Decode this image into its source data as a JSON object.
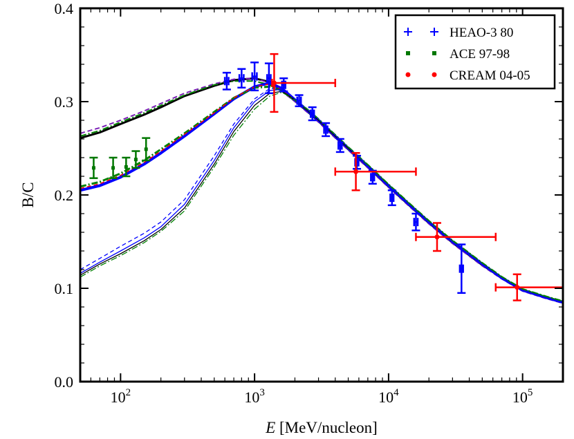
{
  "chart_data": {
    "type": "line",
    "title": "",
    "xlabel_italic": "E",
    "xlabel_rest": " [MeV/nucleon]",
    "ylabel": "B/C",
    "xscale": "log",
    "xlim": [
      50,
      200000
    ],
    "ylim": [
      0.0,
      0.4
    ],
    "x_ticks": [
      {
        "value": 100,
        "base": "10",
        "exp": "2"
      },
      {
        "value": 1000,
        "base": "10",
        "exp": "3"
      },
      {
        "value": 10000,
        "base": "10",
        "exp": "4"
      },
      {
        "value": 100000,
        "base": "10",
        "exp": "5"
      }
    ],
    "y_ticks": [
      {
        "value": 0.0,
        "label": "0.0"
      },
      {
        "value": 0.1,
        "label": "0.1"
      },
      {
        "value": 0.2,
        "label": "0.2"
      },
      {
        "value": 0.3,
        "label": "0.3"
      },
      {
        "value": 0.4,
        "label": "0.4"
      }
    ],
    "grid": false,
    "legend_position": "top-right",
    "legend": [
      {
        "label": "HEAO-3 80",
        "marker": "plus",
        "color": "#0000ff"
      },
      {
        "label": "ACE 97-98",
        "marker": "square",
        "color": "#007700"
      },
      {
        "label": "CREAM 04-05",
        "marker": "circle",
        "color": "#ff0000"
      }
    ],
    "datasets": [
      {
        "name": "HEAO-3 80",
        "color": "#0000ff",
        "points": [
          {
            "x": 620,
            "y": 0.322,
            "yerr": 0.009,
            "xerr": [
              600,
              640
            ]
          },
          {
            "x": 800,
            "y": 0.325,
            "yerr": 0.01,
            "xerr": [
              770,
              830
            ]
          },
          {
            "x": 1000,
            "y": 0.327,
            "yerr": 0.015,
            "xerr": [
              960,
              1040
            ]
          },
          {
            "x": 1280,
            "y": 0.325,
            "yerr": 0.016,
            "xerr": [
              1240,
              1320
            ]
          },
          {
            "x": 1650,
            "y": 0.318,
            "yerr": 0.007,
            "xerr": [
              1600,
              1700
            ]
          },
          {
            "x": 2150,
            "y": 0.301,
            "yerr": 0.006,
            "xerr": [
              2080,
              2220
            ]
          },
          {
            "x": 2700,
            "y": 0.287,
            "yerr": 0.007,
            "xerr": [
              2620,
              2780
            ]
          },
          {
            "x": 3400,
            "y": 0.27,
            "yerr": 0.007,
            "xerr": [
              3300,
              3500
            ]
          },
          {
            "x": 4350,
            "y": 0.253,
            "yerr": 0.007,
            "xerr": [
              4220,
              4480
            ]
          },
          {
            "x": 5800,
            "y": 0.235,
            "yerr": 0.007,
            "xerr": [
              5630,
              5970
            ]
          },
          {
            "x": 7600,
            "y": 0.219,
            "yerr": 0.007,
            "xerr": [
              7380,
              7820
            ]
          },
          {
            "x": 10600,
            "y": 0.197,
            "yerr": 0.008,
            "xerr": [
              10300,
              10900
            ]
          },
          {
            "x": 16000,
            "y": 0.171,
            "yerr": 0.009,
            "xerr": [
              15500,
              16500
            ]
          },
          {
            "x": 35000,
            "y": 0.121,
            "yerr": 0.026,
            "xerr": [
              34000,
              36000
            ]
          }
        ]
      },
      {
        "name": "ACE 97-98",
        "color": "#007700",
        "points": [
          {
            "x": 63,
            "y": 0.229,
            "yerr": 0.011
          },
          {
            "x": 88,
            "y": 0.229,
            "yerr": 0.011
          },
          {
            "x": 110,
            "y": 0.23,
            "yerr": 0.01
          },
          {
            "x": 130,
            "y": 0.238,
            "yerr": 0.009
          },
          {
            "x": 155,
            "y": 0.249,
            "yerr": 0.012
          }
        ]
      },
      {
        "name": "CREAM 04-05",
        "color": "#ff0000",
        "points": [
          {
            "x": 1400,
            "y": 0.32,
            "yerr": 0.031,
            "xerr": [
              1350,
              4000
            ]
          },
          {
            "x": 5700,
            "y": 0.225,
            "yerr": 0.02,
            "xerr": [
              4000,
              16000
            ]
          },
          {
            "x": 23000,
            "y": 0.155,
            "yerr": 0.015,
            "xerr": [
              16000,
              63000
            ]
          },
          {
            "x": 91000,
            "y": 0.101,
            "yerr": 0.014,
            "xerr": [
              63000,
              200000
            ]
          }
        ]
      }
    ],
    "model_curves": [
      {
        "name": "model-upper-solid",
        "color": "#000000",
        "dash": "",
        "width": 3,
        "x": [
          50,
          70,
          100,
          150,
          200,
          300,
          500,
          700,
          1000,
          1300,
          1600,
          2000,
          2500,
          3000,
          4000,
          5000,
          7000,
          10000,
          15000,
          20000,
          30000,
          50000,
          70000,
          100000,
          150000,
          200000
        ],
        "y": [
          0.261,
          0.267,
          0.276,
          0.286,
          0.294,
          0.306,
          0.317,
          0.323,
          0.325,
          0.321,
          0.312,
          0.301,
          0.289,
          0.279,
          0.262,
          0.249,
          0.23,
          0.209,
          0.186,
          0.17,
          0.149,
          0.125,
          0.111,
          0.098,
          0.09,
          0.085
        ]
      },
      {
        "name": "model-upper-dashed",
        "color": "#7a1fb5",
        "dash": "7 4",
        "width": 2,
        "x": [
          50,
          70,
          100,
          150,
          200,
          300,
          500,
          700,
          1000,
          1300,
          1600,
          2000,
          2500,
          3000,
          4000,
          5000,
          7000,
          10000,
          15000,
          20000,
          30000,
          50000,
          70000,
          100000,
          150000,
          200000
        ],
        "y": [
          0.266,
          0.272,
          0.28,
          0.29,
          0.298,
          0.309,
          0.319,
          0.324,
          0.325,
          0.32,
          0.311,
          0.3,
          0.288,
          0.278,
          0.261,
          0.248,
          0.229,
          0.208,
          0.185,
          0.169,
          0.148,
          0.124,
          0.11,
          0.097,
          0.089,
          0.084
        ]
      },
      {
        "name": "model-upper-dashdot",
        "color": "#008000",
        "dash": "9 3 2 3",
        "width": 2,
        "x": [
          50,
          70,
          100,
          150,
          200,
          300,
          500,
          700,
          1000,
          1300,
          1600,
          2000,
          2500,
          3000,
          4000,
          5000,
          7000,
          10000,
          15000,
          20000,
          30000,
          50000,
          70000,
          100000,
          150000,
          200000
        ],
        "y": [
          0.263,
          0.269,
          0.278,
          0.288,
          0.296,
          0.307,
          0.318,
          0.322,
          0.322,
          0.318,
          0.311,
          0.301,
          0.29,
          0.28,
          0.263,
          0.25,
          0.231,
          0.21,
          0.187,
          0.171,
          0.15,
          0.126,
          0.112,
          0.099,
          0.091,
          0.086
        ]
      },
      {
        "name": "model-middle-solid",
        "color": "#0000ff",
        "dash": "",
        "width": 4,
        "x": [
          50,
          70,
          100,
          150,
          200,
          300,
          500,
          700,
          1000,
          1300,
          1600,
          2000,
          2500,
          3000,
          4000,
          5000,
          7000,
          10000,
          15000,
          20000,
          30000,
          50000,
          70000,
          100000,
          150000,
          200000
        ],
        "y": [
          0.205,
          0.21,
          0.219,
          0.233,
          0.245,
          0.263,
          0.287,
          0.303,
          0.316,
          0.32,
          0.314,
          0.302,
          0.29,
          0.28,
          0.263,
          0.25,
          0.231,
          0.21,
          0.187,
          0.171,
          0.15,
          0.126,
          0.111,
          0.098,
          0.09,
          0.085
        ]
      },
      {
        "name": "model-middle-dashdot",
        "color": "#008000",
        "dash": "9 3 2 3",
        "width": 3,
        "x": [
          50,
          70,
          100,
          150,
          200,
          300,
          500,
          700,
          1000,
          1300,
          1600,
          2000,
          2500,
          3000,
          4000,
          5000,
          7000,
          10000,
          15000,
          20000,
          30000,
          50000,
          70000,
          100000,
          150000,
          200000
        ],
        "y": [
          0.209,
          0.214,
          0.223,
          0.237,
          0.249,
          0.266,
          0.289,
          0.304,
          0.315,
          0.316,
          0.312,
          0.302,
          0.291,
          0.281,
          0.264,
          0.251,
          0.232,
          0.211,
          0.188,
          0.172,
          0.151,
          0.127,
          0.112,
          0.099,
          0.091,
          0.086
        ]
      },
      {
        "name": "model-middle-dashed",
        "color": "#ff0000",
        "dash": "6 4",
        "width": 1.5,
        "x": [
          50,
          70,
          100,
          150,
          200,
          300,
          500,
          700,
          1000,
          1300,
          1600,
          2000,
          2500,
          3000,
          4000,
          5000,
          7000,
          10000,
          15000,
          20000,
          30000,
          50000,
          70000,
          100000,
          150000,
          200000
        ],
        "y": [
          0.207,
          0.212,
          0.221,
          0.235,
          0.247,
          0.265,
          0.288,
          0.304,
          0.316,
          0.319,
          0.313,
          0.302,
          0.29,
          0.28,
          0.263,
          0.25,
          0.231,
          0.21,
          0.187,
          0.171,
          0.15,
          0.126,
          0.111,
          0.098,
          0.09,
          0.085
        ]
      },
      {
        "name": "model-lower-solid-black",
        "color": "#000000",
        "dash": "",
        "width": 1.3,
        "x": [
          50,
          70,
          100,
          150,
          200,
          300,
          500,
          700,
          1000,
          1300,
          1600,
          2000,
          2500,
          3000,
          4000,
          5000,
          7000,
          10000,
          15000,
          20000,
          30000,
          50000,
          70000,
          100000,
          150000,
          200000
        ],
        "y": [
          0.114,
          0.126,
          0.137,
          0.151,
          0.163,
          0.186,
          0.233,
          0.268,
          0.296,
          0.309,
          0.311,
          0.302,
          0.29,
          0.28,
          0.263,
          0.25,
          0.231,
          0.21,
          0.187,
          0.171,
          0.15,
          0.126,
          0.111,
          0.098,
          0.09,
          0.085
        ]
      },
      {
        "name": "model-lower-solid-blue",
        "color": "#0000ff",
        "dash": "",
        "width": 1.3,
        "x": [
          50,
          70,
          100,
          150,
          200,
          300,
          500,
          700,
          1000,
          1300,
          1600,
          2000,
          2500,
          3000,
          4000,
          5000,
          7000,
          10000,
          15000,
          20000,
          30000,
          50000,
          70000,
          100000,
          150000,
          200000
        ],
        "y": [
          0.116,
          0.128,
          0.14,
          0.154,
          0.166,
          0.19,
          0.237,
          0.272,
          0.3,
          0.312,
          0.313,
          0.303,
          0.291,
          0.281,
          0.264,
          0.251,
          0.231,
          0.21,
          0.187,
          0.171,
          0.15,
          0.126,
          0.111,
          0.098,
          0.09,
          0.085
        ]
      },
      {
        "name": "model-lower-dashed-blue",
        "color": "#0000ff",
        "dash": "6 4",
        "width": 1.3,
        "x": [
          50,
          70,
          100,
          150,
          200,
          300,
          500,
          700,
          1000,
          1300,
          1600,
          2000,
          2500,
          3000,
          4000,
          5000,
          7000,
          10000,
          15000,
          20000,
          30000,
          50000,
          70000,
          100000,
          150000,
          200000
        ],
        "y": [
          0.12,
          0.132,
          0.145,
          0.159,
          0.171,
          0.195,
          0.242,
          0.276,
          0.303,
          0.314,
          0.314,
          0.303,
          0.291,
          0.281,
          0.264,
          0.251,
          0.231,
          0.21,
          0.187,
          0.171,
          0.15,
          0.126,
          0.111,
          0.098,
          0.09,
          0.085
        ]
      },
      {
        "name": "model-lower-dashdot-green",
        "color": "#008000",
        "dash": "9 3 2 3",
        "width": 1.3,
        "x": [
          50,
          70,
          100,
          150,
          200,
          300,
          500,
          700,
          1000,
          1300,
          1600,
          2000,
          2500,
          3000,
          4000,
          5000,
          7000,
          10000,
          15000,
          20000,
          30000,
          50000,
          70000,
          100000,
          150000,
          200000
        ],
        "y": [
          0.112,
          0.124,
          0.135,
          0.149,
          0.161,
          0.183,
          0.23,
          0.264,
          0.292,
          0.306,
          0.31,
          0.302,
          0.291,
          0.281,
          0.264,
          0.251,
          0.232,
          0.211,
          0.188,
          0.172,
          0.151,
          0.127,
          0.112,
          0.099,
          0.091,
          0.086
        ]
      }
    ]
  }
}
